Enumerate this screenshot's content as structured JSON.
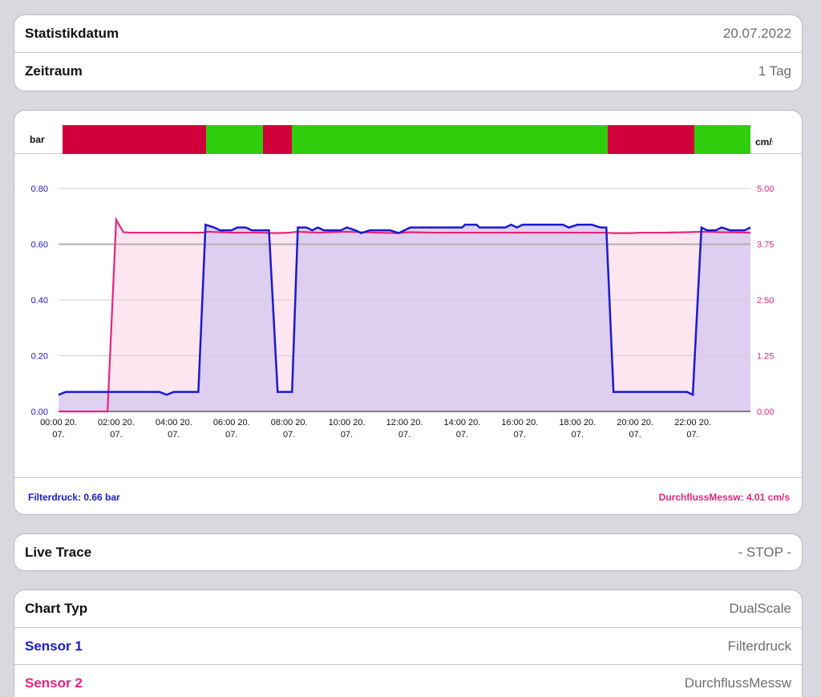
{
  "stats": {
    "date_label": "Statistikdatum",
    "date_value": "20.07.2022",
    "range_label": "Zeitraum",
    "range_value": "1 Tag"
  },
  "chart": {
    "left_unit": "bar",
    "right_unit": "cm/s",
    "colors": {
      "sensor1": "#1a1ad1",
      "sensor2": "#e8247a",
      "fill1": "#d8c9ee",
      "fill2": "#fde6ef",
      "state_on": "#2ece0c",
      "state_off": "#d0003a"
    },
    "state_segments": [
      {
        "state": "off",
        "start": 0.15,
        "end": 5.12
      },
      {
        "state": "on",
        "start": 5.12,
        "end": 7.1
      },
      {
        "state": "off",
        "start": 7.1,
        "end": 8.1
      },
      {
        "state": "on",
        "start": 8.1,
        "end": 19.05
      },
      {
        "state": "off",
        "start": 19.05,
        "end": 22.05
      },
      {
        "state": "on",
        "start": 22.05,
        "end": 24.0
      }
    ],
    "footer_left": "Filterdruck: 0.66 bar",
    "footer_right": "DurchflussMessw: 4.01 cm/s"
  },
  "chart_data": {
    "type": "line",
    "x_unit": "hours",
    "x_ticks": [
      {
        "hour": 0,
        "line1": "00:00 20.",
        "line2": "07."
      },
      {
        "hour": 2,
        "line1": "02:00 20.",
        "line2": "07."
      },
      {
        "hour": 4,
        "line1": "04:00 20.",
        "line2": "07."
      },
      {
        "hour": 6,
        "line1": "06:00 20.",
        "line2": "07."
      },
      {
        "hour": 8,
        "line1": "08:00 20.",
        "line2": "07."
      },
      {
        "hour": 10,
        "line1": "10:00 20.",
        "line2": "07."
      },
      {
        "hour": 12,
        "line1": "12:00 20.",
        "line2": "07."
      },
      {
        "hour": 14,
        "line1": "14:00 20.",
        "line2": "07."
      },
      {
        "hour": 16,
        "line1": "16:00 20.",
        "line2": "07."
      },
      {
        "hour": 18,
        "line1": "18:00 20.",
        "line2": "07."
      },
      {
        "hour": 20,
        "line1": "20:00 20.",
        "line2": "07."
      },
      {
        "hour": 22,
        "line1": "22:00 20.",
        "line2": "07."
      }
    ],
    "xlim": [
      0,
      24
    ],
    "y_left": {
      "ticks": [
        "0.00",
        "0.20",
        "0.40",
        "0.60",
        "0.80"
      ],
      "lim": [
        0,
        0.8
      ]
    },
    "y_right": {
      "ticks": [
        "0.00",
        "1.25",
        "2.50",
        "3.75",
        "5.00"
      ],
      "lim": [
        0,
        5
      ]
    },
    "grid": true,
    "series": [
      {
        "name": "Filterdruck",
        "axis": "left",
        "points": [
          [
            0.0,
            0.06
          ],
          [
            0.25,
            0.07
          ],
          [
            1.0,
            0.07
          ],
          [
            2.0,
            0.07
          ],
          [
            3.0,
            0.07
          ],
          [
            3.5,
            0.07
          ],
          [
            3.75,
            0.06
          ],
          [
            4.0,
            0.07
          ],
          [
            4.5,
            0.07
          ],
          [
            4.85,
            0.07
          ],
          [
            5.1,
            0.67
          ],
          [
            5.4,
            0.66
          ],
          [
            5.6,
            0.65
          ],
          [
            6.0,
            0.65
          ],
          [
            6.2,
            0.66
          ],
          [
            6.5,
            0.66
          ],
          [
            6.7,
            0.65
          ],
          [
            7.0,
            0.65
          ],
          [
            7.3,
            0.65
          ],
          [
            7.6,
            0.07
          ],
          [
            8.1,
            0.07
          ],
          [
            8.3,
            0.66
          ],
          [
            8.6,
            0.66
          ],
          [
            8.8,
            0.65
          ],
          [
            9.0,
            0.66
          ],
          [
            9.2,
            0.65
          ],
          [
            9.8,
            0.65
          ],
          [
            10.0,
            0.66
          ],
          [
            10.3,
            0.65
          ],
          [
            10.5,
            0.64
          ],
          [
            10.8,
            0.65
          ],
          [
            11.5,
            0.65
          ],
          [
            11.8,
            0.64
          ],
          [
            12.2,
            0.66
          ],
          [
            13.0,
            0.66
          ],
          [
            14.0,
            0.66
          ],
          [
            14.1,
            0.67
          ],
          [
            14.5,
            0.67
          ],
          [
            14.6,
            0.66
          ],
          [
            15.5,
            0.66
          ],
          [
            15.7,
            0.67
          ],
          [
            15.9,
            0.66
          ],
          [
            16.1,
            0.67
          ],
          [
            17.0,
            0.67
          ],
          [
            17.5,
            0.67
          ],
          [
            17.7,
            0.66
          ],
          [
            18.0,
            0.67
          ],
          [
            18.5,
            0.67
          ],
          [
            18.8,
            0.66
          ],
          [
            19.0,
            0.66
          ],
          [
            19.25,
            0.07
          ],
          [
            20.0,
            0.07
          ],
          [
            21.0,
            0.07
          ],
          [
            21.8,
            0.07
          ],
          [
            22.0,
            0.06
          ],
          [
            22.3,
            0.66
          ],
          [
            22.5,
            0.65
          ],
          [
            22.8,
            0.65
          ],
          [
            23.0,
            0.66
          ],
          [
            23.3,
            0.65
          ],
          [
            23.6,
            0.65
          ],
          [
            23.8,
            0.65
          ],
          [
            24.0,
            0.66
          ]
        ]
      },
      {
        "name": "DurchflussMessw",
        "axis": "right",
        "points": [
          [
            0.0,
            0.0
          ],
          [
            1.7,
            0.0
          ],
          [
            2.0,
            4.3
          ],
          [
            2.25,
            4.02
          ],
          [
            2.5,
            4.01
          ],
          [
            4.0,
            4.01
          ],
          [
            5.0,
            4.01
          ],
          [
            5.2,
            4.03
          ],
          [
            6.0,
            4.01
          ],
          [
            7.0,
            4.01
          ],
          [
            7.5,
            4.0
          ],
          [
            8.0,
            4.01
          ],
          [
            8.3,
            4.03
          ],
          [
            9.0,
            4.01
          ],
          [
            10.0,
            4.03
          ],
          [
            11.0,
            4.01
          ],
          [
            11.7,
            4.0
          ],
          [
            12.2,
            4.02
          ],
          [
            13.0,
            4.01
          ],
          [
            15.0,
            4.01
          ],
          [
            16.0,
            4.01
          ],
          [
            17.0,
            4.01
          ],
          [
            18.0,
            4.01
          ],
          [
            19.0,
            4.01
          ],
          [
            19.2,
            4.0
          ],
          [
            19.8,
            4.0
          ],
          [
            20.2,
            4.01
          ],
          [
            21.0,
            4.01
          ],
          [
            21.8,
            4.02
          ],
          [
            22.3,
            4.03
          ],
          [
            23.0,
            4.02
          ],
          [
            24.0,
            4.01
          ]
        ]
      }
    ]
  },
  "live": {
    "label": "Live Trace",
    "value": "- STOP -"
  },
  "settings": {
    "chart_type_label": "Chart Typ",
    "chart_type_value": "DualScale",
    "sensor1_label": "Sensor 1",
    "sensor1_value": "Filterdruck",
    "sensor2_label": "Sensor 2",
    "sensor2_value": "DurchflussMessw"
  }
}
